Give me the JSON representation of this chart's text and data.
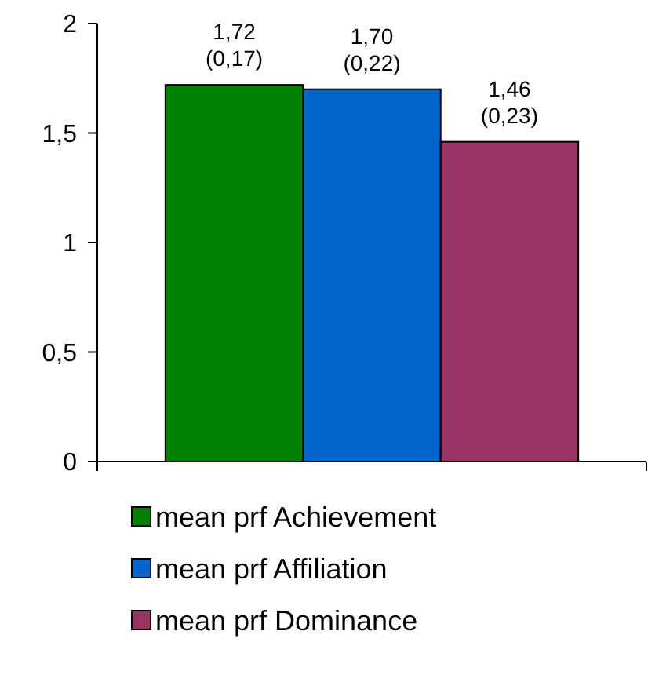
{
  "chart_data": {
    "type": "bar",
    "categories": [
      null
    ],
    "ylim": [
      0,
      2
    ],
    "yticks": [
      0,
      {
        "value": 0.5,
        "label": "0,5"
      },
      1,
      {
        "value": 1.5,
        "label": "1,5"
      },
      2
    ],
    "legend": "bottom",
    "grid": false,
    "series": [
      {
        "name": "mean prf Achievement",
        "color": "#008000",
        "values": [
          1.72
        ],
        "value_labels": [
          "1,72\n(0,17)"
        ]
      },
      {
        "name": "mean prf Affiliation",
        "color": "#0066cc",
        "values": [
          1.7
        ],
        "value_labels": [
          "1,70\n(0,22)"
        ]
      },
      {
        "name": "mean prf Dominance",
        "color": "#993366",
        "values": [
          1.46
        ],
        "value_labels": [
          "1,46\n(0,23)"
        ]
      }
    ]
  }
}
